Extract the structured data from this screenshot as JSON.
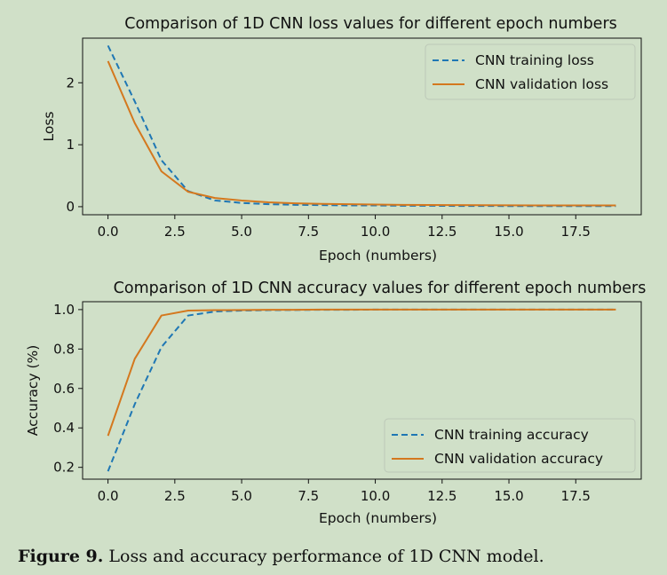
{
  "figure": {
    "caption_label": "Figure 9.",
    "caption_text": " Loss and accuracy performance of 1D CNN model."
  },
  "colors": {
    "background": "#d0e0c8",
    "training": "#1f77b4",
    "validation": "#d4781e"
  },
  "chart_data": [
    {
      "type": "line",
      "title": "Comparison of 1D CNN loss values for different epoch numbers",
      "xlabel": "Epoch (numbers)",
      "ylabel": "Loss",
      "xlim": [
        -0.95,
        19.95
      ],
      "ylim": [
        -0.13,
        2.72
      ],
      "xticks": [
        0.0,
        2.5,
        5.0,
        7.5,
        10.0,
        12.5,
        15.0,
        17.5
      ],
      "xtick_labels": [
        "0.0",
        "2.5",
        "5.0",
        "7.5",
        "10.0",
        "12.5",
        "15.0",
        "17.5"
      ],
      "yticks": [
        0,
        1,
        2
      ],
      "ytick_labels": [
        "0",
        "1",
        "2"
      ],
      "grid": false,
      "legend_position": "upper-right",
      "x": [
        0,
        1,
        2,
        3,
        4,
        5,
        6,
        7,
        8,
        9,
        10,
        11,
        12,
        13,
        14,
        15,
        16,
        17,
        18,
        19
      ],
      "series": [
        {
          "name": "CNN training loss",
          "style": "dashed",
          "values": [
            2.6,
            1.7,
            0.75,
            0.25,
            0.1,
            0.06,
            0.04,
            0.03,
            0.025,
            0.02,
            0.02,
            0.015,
            0.015,
            0.012,
            0.012,
            0.01,
            0.01,
            0.01,
            0.01,
            0.01
          ]
        },
        {
          "name": "CNN validation loss",
          "style": "solid",
          "values": [
            2.35,
            1.35,
            0.57,
            0.24,
            0.14,
            0.1,
            0.07,
            0.055,
            0.045,
            0.04,
            0.035,
            0.03,
            0.028,
            0.026,
            0.024,
            0.022,
            0.02,
            0.02,
            0.02,
            0.02
          ]
        }
      ]
    },
    {
      "type": "line",
      "title": "Comparison of 1D CNN accuracy values for different epoch numbers",
      "xlabel": "Epoch (numbers)",
      "ylabel": "Accuracy (%)",
      "xlim": [
        -0.95,
        19.95
      ],
      "ylim": [
        0.14,
        1.04
      ],
      "xticks": [
        0.0,
        2.5,
        5.0,
        7.5,
        10.0,
        12.5,
        15.0,
        17.5
      ],
      "xtick_labels": [
        "0.0",
        "2.5",
        "5.0",
        "7.5",
        "10.0",
        "12.5",
        "15.0",
        "17.5"
      ],
      "yticks": [
        0.2,
        0.4,
        0.6,
        0.8,
        1.0
      ],
      "ytick_labels": [
        "0.2",
        "0.4",
        "0.6",
        "0.8",
        "1.0"
      ],
      "grid": false,
      "legend_position": "lower-right",
      "x": [
        0,
        1,
        2,
        3,
        4,
        5,
        6,
        7,
        8,
        9,
        10,
        11,
        12,
        13,
        14,
        15,
        16,
        17,
        18,
        19
      ],
      "series": [
        {
          "name": "CNN training accuracy",
          "style": "dashed",
          "values": [
            0.18,
            0.52,
            0.81,
            0.97,
            0.99,
            0.995,
            0.997,
            0.998,
            0.999,
            0.999,
            1.0,
            1.0,
            1.0,
            1.0,
            1.0,
            1.0,
            1.0,
            1.0,
            1.0,
            1.0
          ]
        },
        {
          "name": "CNN validation accuracy",
          "style": "solid",
          "values": [
            0.36,
            0.75,
            0.97,
            0.995,
            0.997,
            0.998,
            0.999,
            0.999,
            1.0,
            1.0,
            1.0,
            1.0,
            1.0,
            1.0,
            1.0,
            1.0,
            1.0,
            1.0,
            1.0,
            1.0
          ]
        }
      ]
    }
  ]
}
